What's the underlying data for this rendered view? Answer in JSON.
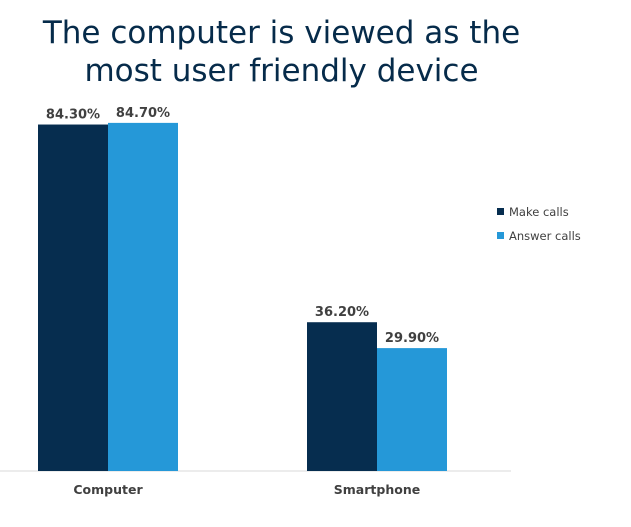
{
  "chart_data": {
    "type": "bar",
    "title_lines": [
      "The computer is viewed as the",
      "most user friendly device"
    ],
    "categories": [
      "Computer",
      "Smartphone"
    ],
    "series": [
      {
        "name": "Make calls",
        "values": [
          84.3,
          36.2
        ],
        "labels": [
          "84.30%",
          "36.20%"
        ],
        "color": "#062d4f"
      },
      {
        "name": "Answer calls",
        "values": [
          84.7,
          29.9
        ],
        "labels": [
          "84.70%",
          "29.90%"
        ],
        "color": "#2598d8"
      }
    ],
    "ylim": [
      0,
      100
    ],
    "legend_position": "right",
    "grid": false
  }
}
